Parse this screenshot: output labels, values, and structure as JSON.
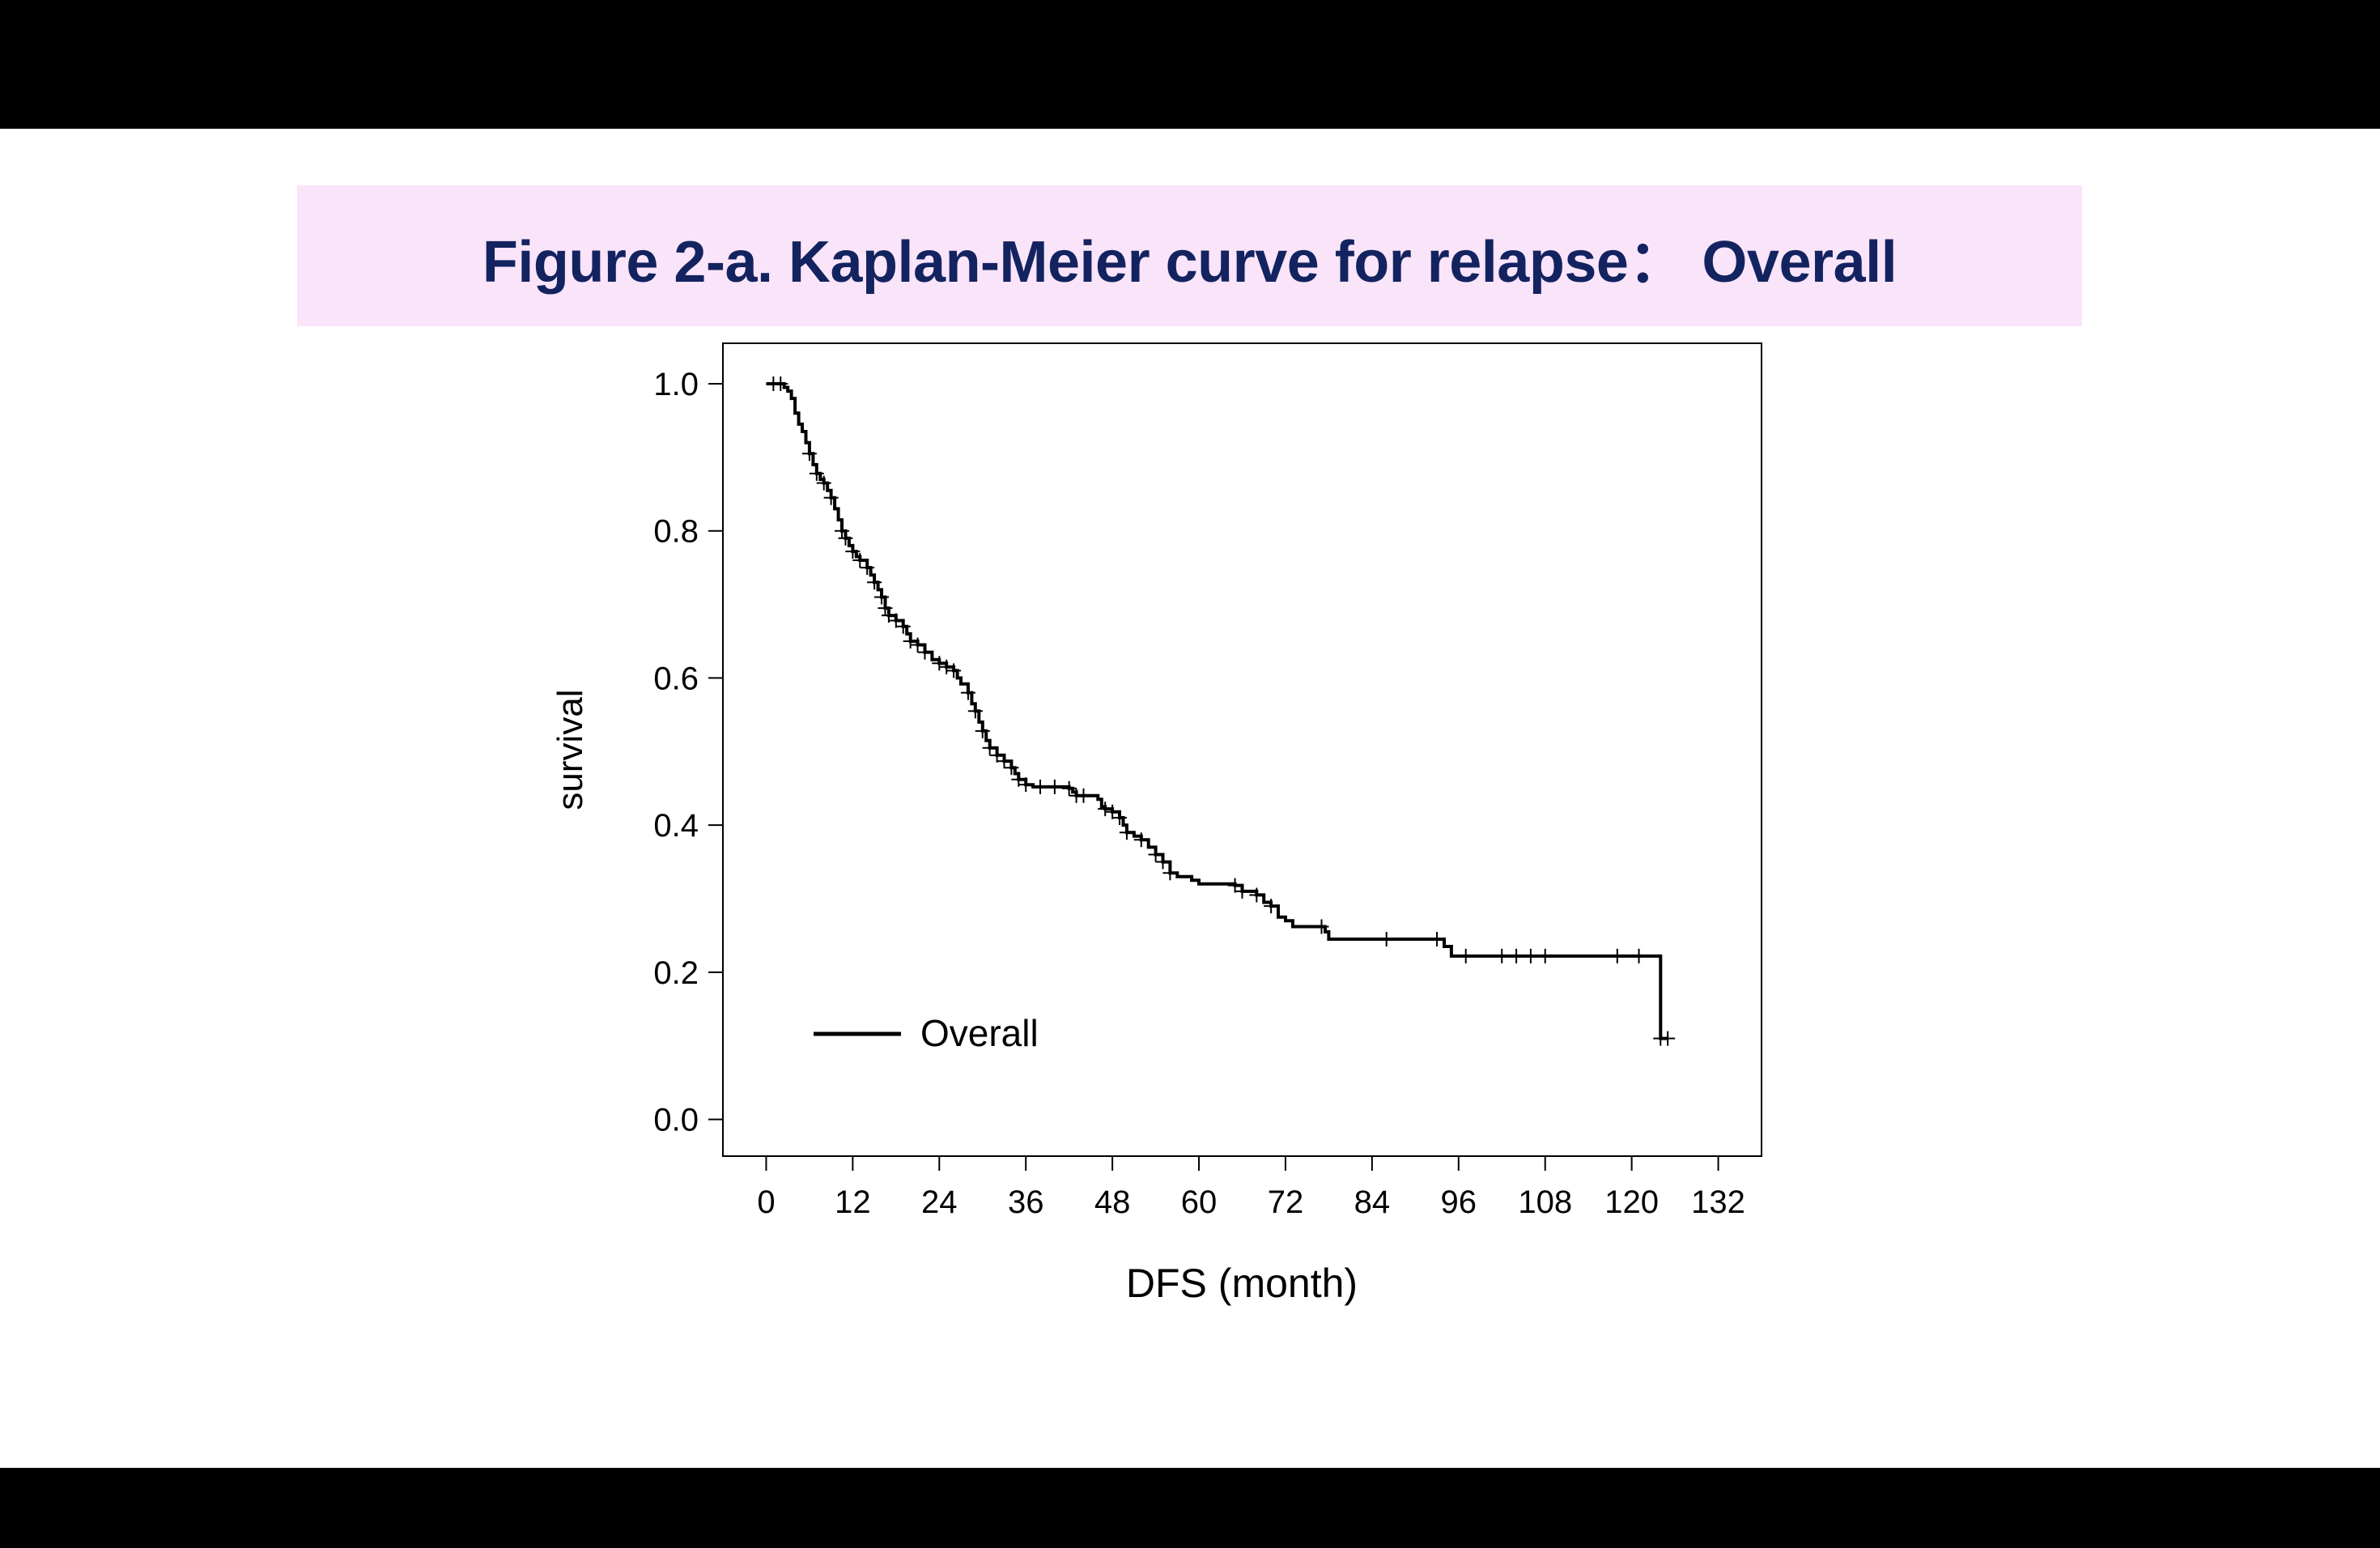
{
  "figure": {
    "title": "Figure 2-a. Kaplan-Meier curve for relapse： Overall",
    "colors": {
      "title_text": "#13235f",
      "title_band": "#f9e4fa",
      "frame": "#000000",
      "curve": "#000000"
    }
  },
  "chart_data": {
    "type": "line",
    "xlabel": "DFS (month)",
    "ylabel": "survival",
    "xlim": [
      -6,
      138
    ],
    "ylim": [
      -0.05,
      1.055
    ],
    "xticks": [
      0,
      12,
      24,
      36,
      48,
      60,
      72,
      84,
      96,
      108,
      120,
      132
    ],
    "yticks": [
      0.0,
      0.2,
      0.4,
      0.6,
      0.8,
      1.0
    ],
    "ytick_labels": [
      "0.0",
      "0.2",
      "0.4",
      "0.6",
      "0.8",
      "1.0"
    ],
    "legend": {
      "position": "bottom-left",
      "entries": [
        "Overall"
      ]
    },
    "grid": false,
    "series": [
      {
        "name": "Overall",
        "step": true,
        "points": [
          [
            0,
            1.0
          ],
          [
            2,
            1.0
          ],
          [
            2.5,
            0.995
          ],
          [
            3,
            0.99
          ],
          [
            3.5,
            0.98
          ],
          [
            4,
            0.96
          ],
          [
            4.5,
            0.945
          ],
          [
            5,
            0.935
          ],
          [
            5.5,
            0.92
          ],
          [
            6,
            0.905
          ],
          [
            6.5,
            0.89
          ],
          [
            7,
            0.878
          ],
          [
            7.5,
            0.87
          ],
          [
            8,
            0.865
          ],
          [
            8.5,
            0.855
          ],
          [
            9,
            0.845
          ],
          [
            9.5,
            0.83
          ],
          [
            10,
            0.815
          ],
          [
            10.5,
            0.8
          ],
          [
            11,
            0.79
          ],
          [
            11.5,
            0.78
          ],
          [
            12,
            0.772
          ],
          [
            12.5,
            0.765
          ],
          [
            13,
            0.76
          ],
          [
            14,
            0.75
          ],
          [
            14.5,
            0.74
          ],
          [
            15,
            0.73
          ],
          [
            15.5,
            0.72
          ],
          [
            16,
            0.71
          ],
          [
            16.5,
            0.695
          ],
          [
            17,
            0.685
          ],
          [
            18,
            0.678
          ],
          [
            19,
            0.67
          ],
          [
            19.5,
            0.66
          ],
          [
            20,
            0.65
          ],
          [
            21,
            0.645
          ],
          [
            22,
            0.635
          ],
          [
            23,
            0.625
          ],
          [
            24,
            0.62
          ],
          [
            25,
            0.615
          ],
          [
            26,
            0.61
          ],
          [
            26.5,
            0.6
          ],
          [
            27,
            0.592
          ],
          [
            28,
            0.58
          ],
          [
            28.5,
            0.565
          ],
          [
            29,
            0.555
          ],
          [
            29.5,
            0.54
          ],
          [
            30,
            0.528
          ],
          [
            30.5,
            0.515
          ],
          [
            31,
            0.505
          ],
          [
            32,
            0.495
          ],
          [
            33,
            0.487
          ],
          [
            34,
            0.478
          ],
          [
            34.5,
            0.47
          ],
          [
            35,
            0.462
          ],
          [
            36,
            0.455
          ],
          [
            37,
            0.452
          ],
          [
            42,
            0.45
          ],
          [
            42.5,
            0.445
          ],
          [
            43,
            0.44
          ],
          [
            46,
            0.435
          ],
          [
            46.5,
            0.425
          ],
          [
            47,
            0.422
          ],
          [
            48,
            0.418
          ],
          [
            49,
            0.41
          ],
          [
            49.5,
            0.4
          ],
          [
            50,
            0.39
          ],
          [
            51,
            0.385
          ],
          [
            52,
            0.38
          ],
          [
            53,
            0.37
          ],
          [
            54,
            0.36
          ],
          [
            55,
            0.35
          ],
          [
            56,
            0.335
          ],
          [
            57,
            0.33
          ],
          [
            59,
            0.325
          ],
          [
            60,
            0.32
          ],
          [
            65,
            0.318
          ],
          [
            66,
            0.31
          ],
          [
            68,
            0.305
          ],
          [
            69,
            0.295
          ],
          [
            70,
            0.29
          ],
          [
            71,
            0.275
          ],
          [
            72,
            0.27
          ],
          [
            73,
            0.262
          ],
          [
            77.5,
            0.255
          ],
          [
            78,
            0.245
          ],
          [
            94,
            0.235
          ],
          [
            95,
            0.222
          ],
          [
            123.5,
            0.222
          ],
          [
            124,
            0.11
          ],
          [
            125,
            0.11
          ]
        ],
        "censor_marks": [
          [
            1,
            1.0
          ],
          [
            2,
            1.0
          ],
          [
            6,
            0.905
          ],
          [
            7,
            0.878
          ],
          [
            8,
            0.865
          ],
          [
            9,
            0.845
          ],
          [
            10.5,
            0.8
          ],
          [
            11,
            0.79
          ],
          [
            12,
            0.772
          ],
          [
            13,
            0.76
          ],
          [
            14,
            0.75
          ],
          [
            15,
            0.73
          ],
          [
            16,
            0.71
          ],
          [
            16.5,
            0.695
          ],
          [
            17,
            0.685
          ],
          [
            18,
            0.678
          ],
          [
            19,
            0.67
          ],
          [
            20,
            0.65
          ],
          [
            21,
            0.645
          ],
          [
            22,
            0.635
          ],
          [
            24,
            0.62
          ],
          [
            25,
            0.615
          ],
          [
            26,
            0.61
          ],
          [
            28,
            0.58
          ],
          [
            29,
            0.555
          ],
          [
            30,
            0.528
          ],
          [
            31,
            0.505
          ],
          [
            32,
            0.495
          ],
          [
            33,
            0.487
          ],
          [
            34,
            0.478
          ],
          [
            35,
            0.462
          ],
          [
            36,
            0.455
          ],
          [
            38,
            0.452
          ],
          [
            40,
            0.452
          ],
          [
            42,
            0.45
          ],
          [
            43,
            0.44
          ],
          [
            44,
            0.44
          ],
          [
            47,
            0.422
          ],
          [
            48,
            0.418
          ],
          [
            49,
            0.41
          ],
          [
            50,
            0.39
          ],
          [
            52,
            0.38
          ],
          [
            54,
            0.36
          ],
          [
            55,
            0.35
          ],
          [
            56,
            0.335
          ],
          [
            65,
            0.318
          ],
          [
            66,
            0.31
          ],
          [
            68,
            0.305
          ],
          [
            70,
            0.29
          ],
          [
            77,
            0.262
          ],
          [
            86,
            0.245
          ],
          [
            93,
            0.245
          ],
          [
            97,
            0.222
          ],
          [
            102,
            0.222
          ],
          [
            104,
            0.222
          ],
          [
            106,
            0.222
          ],
          [
            108,
            0.222
          ],
          [
            118,
            0.222
          ],
          [
            121,
            0.222
          ],
          [
            124,
            0.11
          ],
          [
            125,
            0.11
          ]
        ]
      }
    ]
  }
}
